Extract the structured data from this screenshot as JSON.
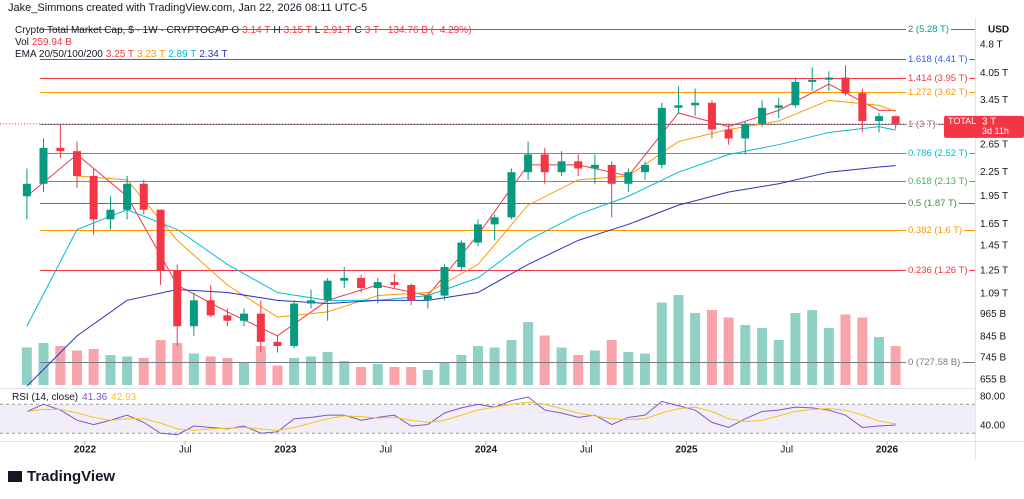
{
  "header": {
    "credit": "Jake_Simmons created with TradingView.com, Jan 22, 2026 08:11 UTC-5"
  },
  "chart_data": {
    "type": "candlestick",
    "title": "Crypto Total Market Cap, $ · 1W · CRYPTOCAP",
    "legend": {
      "ohlc": [
        {
          "label": "O",
          "value": "3.14 T"
        },
        {
          "label": "H",
          "value": "3.15 T"
        },
        {
          "label": "L",
          "value": "2.91 T"
        },
        {
          "label": "C",
          "value": "3 T"
        }
      ],
      "change": "−134.76 B (−4.29%)",
      "volume": {
        "label": "Vol",
        "value": "259.94 B"
      },
      "ema": {
        "label": "EMA 20/50/100/200",
        "values": [
          "3.25 T",
          "3.23 T",
          "2.89 T",
          "2.34 T"
        ]
      }
    },
    "log_scale": true,
    "unit": "USD",
    "up_color": "#089981",
    "down_color": "#f23645",
    "xlim": [
      2021.576,
      2026.439
    ],
    "xticks": [
      {
        "value": 2022,
        "label": "2022"
      },
      {
        "value": 2022.5,
        "label": "Jul"
      },
      {
        "value": 2023,
        "label": "2023"
      },
      {
        "value": 2023.5,
        "label": "Jul"
      },
      {
        "value": 2024,
        "label": "2024"
      },
      {
        "value": 2024.5,
        "label": "Jul"
      },
      {
        "value": 2025,
        "label": "2025"
      },
      {
        "value": 2025.5,
        "label": "Jul"
      },
      {
        "value": 2026,
        "label": "2026"
      }
    ],
    "ylim": [
      0.627,
      5.63
    ],
    "yticks": [
      {
        "value": 4.8,
        "label": "4.8 T"
      },
      {
        "value": 4.05,
        "label": "4.05 T"
      },
      {
        "value": 3.45,
        "label": "3.45 T"
      },
      {
        "value": 2.65,
        "label": "2.65 T"
      },
      {
        "value": 2.25,
        "label": "2.25 T"
      },
      {
        "value": 1.95,
        "label": "1.95 T"
      },
      {
        "value": 1.65,
        "label": "1.65 T"
      },
      {
        "value": 1.45,
        "label": "1.45 T"
      },
      {
        "value": 1.25,
        "label": "1.25 T"
      },
      {
        "value": 1.09,
        "label": "1.09 T"
      },
      {
        "value": 0.965,
        "label": "965 B"
      },
      {
        "value": 0.845,
        "label": "845 B"
      },
      {
        "value": 0.745,
        "label": "745 B"
      },
      {
        "value": 0.655,
        "label": "655 B"
      }
    ],
    "x": [
      2021.71,
      2021.793,
      2021.877,
      2021.96,
      2022.043,
      2022.127,
      2022.21,
      2022.293,
      2022.377,
      2022.46,
      2022.543,
      2022.627,
      2022.71,
      2022.793,
      2022.877,
      2022.96,
      2023.043,
      2023.127,
      2023.21,
      2023.293,
      2023.377,
      2023.46,
      2023.543,
      2023.627,
      2023.71,
      2023.793,
      2023.877,
      2023.96,
      2024.043,
      2024.127,
      2024.21,
      2024.293,
      2024.377,
      2024.46,
      2024.543,
      2024.627,
      2024.71,
      2024.793,
      2024.877,
      2024.96,
      2025.043,
      2025.127,
      2025.21,
      2025.293,
      2025.377,
      2025.46,
      2025.543,
      2025.627,
      2025.71,
      2025.793,
      2025.877,
      2025.96,
      2026.043
    ],
    "open": [
      1.95,
      2.1,
      2.6,
      2.55,
      2.2,
      1.7,
      1.8,
      2.1,
      1.8,
      1.25,
      0.9,
      1.05,
      0.96,
      0.93,
      0.97,
      0.82,
      0.8,
      1.03,
      1.05,
      1.18,
      1.2,
      1.13,
      1.17,
      1.15,
      1.05,
      1.08,
      1.28,
      1.48,
      1.65,
      1.72,
      2.25,
      2.5,
      2.25,
      2.4,
      2.3,
      2.35,
      2.1,
      2.25,
      2.35,
      3.3,
      3.35,
      3.4,
      2.9,
      2.75,
      3.0,
      3.3,
      3.35,
      3.85,
      3.9,
      3.95,
      3.6,
      3.05,
      3.14
    ],
    "high": [
      2.3,
      2.75,
      3.0,
      2.7,
      2.3,
      1.95,
      2.2,
      2.15,
      1.8,
      1.3,
      1.1,
      1.15,
      1.0,
      1.0,
      1.05,
      0.85,
      1.05,
      1.12,
      1.2,
      1.28,
      1.22,
      1.2,
      1.23,
      1.16,
      1.1,
      1.3,
      1.5,
      1.7,
      1.75,
      2.3,
      2.7,
      2.6,
      2.55,
      2.5,
      2.5,
      2.4,
      2.3,
      2.4,
      3.4,
      3.75,
      3.7,
      3.45,
      3.0,
      3.05,
      3.45,
      3.5,
      3.95,
      4.2,
      4.1,
      4.25,
      3.7,
      3.2,
      3.15
    ],
    "low": [
      1.7,
      2.0,
      2.45,
      2.05,
      1.55,
      1.6,
      1.7,
      1.75,
      1.15,
      0.8,
      0.85,
      0.95,
      0.9,
      0.9,
      0.77,
      0.77,
      0.79,
      1.0,
      0.93,
      1.13,
      1.1,
      1.03,
      1.13,
      1.02,
      1.0,
      1.05,
      1.25,
      1.45,
      1.5,
      1.7,
      2.15,
      2.1,
      2.2,
      2.2,
      2.1,
      1.72,
      2.0,
      2.15,
      2.3,
      3.2,
      3.15,
      2.75,
      2.65,
      2.5,
      2.95,
      3.1,
      3.3,
      3.65,
      3.65,
      3.55,
      2.85,
      2.85,
      2.91
    ],
    "close": [
      2.1,
      2.6,
      2.55,
      2.2,
      1.7,
      1.8,
      2.1,
      1.8,
      1.25,
      0.9,
      1.05,
      0.96,
      0.93,
      0.97,
      0.82,
      0.8,
      1.03,
      1.05,
      1.18,
      1.2,
      1.13,
      1.17,
      1.15,
      1.05,
      1.08,
      1.28,
      1.48,
      1.65,
      1.72,
      2.25,
      2.5,
      2.25,
      2.4,
      2.3,
      2.35,
      2.1,
      2.25,
      2.35,
      3.3,
      3.35,
      3.4,
      2.9,
      2.75,
      3.0,
      3.3,
      3.35,
      3.85,
      3.9,
      3.95,
      3.6,
      3.05,
      3.14,
      3
    ],
    "volume": [
      250,
      280,
      260,
      230,
      240,
      200,
      190,
      180,
      300,
      280,
      210,
      190,
      180,
      150,
      260,
      130,
      180,
      190,
      220,
      160,
      120,
      140,
      120,
      120,
      100,
      150,
      200,
      260,
      250,
      300,
      420,
      330,
      250,
      200,
      230,
      300,
      220,
      210,
      550,
      600,
      480,
      500,
      450,
      400,
      380,
      300,
      480,
      500,
      380,
      470,
      450,
      320,
      259.94
    ],
    "ema": [
      {
        "color": "#f23645",
        "x": [
          2021.71,
          2021.96,
          2022.21,
          2022.46,
          2022.71,
          2022.96,
          2023.21,
          2023.46,
          2023.71,
          2023.96,
          2024.21,
          2024.46,
          2024.71,
          2024.96,
          2025.21,
          2025.46,
          2025.71,
          2025.96,
          2026.043
        ],
        "values": [
          1.95,
          2.5,
          1.95,
          1.15,
          0.98,
          0.85,
          1.05,
          1.15,
          1.08,
          1.55,
          2.35,
          2.35,
          2.2,
          3.2,
          2.95,
          3.25,
          3.8,
          3.25,
          3.25
        ]
      },
      {
        "color": "#ff9800",
        "x": [
          2021.71,
          2021.96,
          2022.21,
          2022.46,
          2022.71,
          2022.96,
          2023.21,
          2023.46,
          2023.71,
          2023.96,
          2024.21,
          2024.46,
          2024.71,
          2024.96,
          2025.21,
          2025.46,
          2025.71,
          2025.96,
          2026.043
        ],
        "values": [
          null,
          2.2,
          2.15,
          1.5,
          1.15,
          0.95,
          0.98,
          1.08,
          1.1,
          1.3,
          1.85,
          2.15,
          2.2,
          2.7,
          2.9,
          3.05,
          3.45,
          3.35,
          3.23
        ]
      },
      {
        "color": "#00bcd4",
        "x": [
          2021.71,
          2021.96,
          2022.21,
          2022.46,
          2022.71,
          2022.96,
          2023.21,
          2023.46,
          2023.71,
          2023.96,
          2024.21,
          2024.46,
          2024.71,
          2024.96,
          2025.21,
          2025.46,
          2025.71,
          2025.96,
          2026.043
        ],
        "values": [
          0.9,
          1.6,
          1.8,
          1.6,
          1.3,
          1.1,
          1.05,
          1.05,
          1.08,
          1.2,
          1.5,
          1.75,
          1.95,
          2.25,
          2.5,
          2.65,
          2.85,
          2.95,
          2.89
        ]
      },
      {
        "color": "#2934b8",
        "x": [
          2021.71,
          2021.96,
          2022.21,
          2022.46,
          2022.71,
          2022.96,
          2023.21,
          2023.46,
          2023.71,
          2023.96,
          2024.21,
          2024.46,
          2024.71,
          2024.96,
          2025.21,
          2025.46,
          2025.71,
          2025.96,
          2026.043
        ],
        "values": [
          0.63,
          0.85,
          1.05,
          1.12,
          1.1,
          1.05,
          1.03,
          1.05,
          1.05,
          1.1,
          1.3,
          1.5,
          1.65,
          1.85,
          2.0,
          2.1,
          2.25,
          2.32,
          2.34
        ]
      }
    ],
    "fib_levels": [
      {
        "value": 5.28,
        "label": "2 (5.28 T)",
        "color": "#089981"
      },
      {
        "value": 4.41,
        "label": "1.618 (4.41 T)",
        "color": "#2962ff"
      },
      {
        "value": 3.95,
        "label": "1.414 (3.95 T)",
        "color": "#f23645"
      },
      {
        "value": 3.62,
        "label": "1.272 (3.62 T)",
        "color": "#ff9800"
      },
      {
        "value": 3,
        "label": "1 (3 T)",
        "color": "#787b86"
      },
      {
        "value": 2.52,
        "label": "0.786 (2.52 T)",
        "color": "#00bcd4"
      },
      {
        "value": 2.13,
        "label": "0.618 (2.13 T)",
        "color": "#4caf50"
      },
      {
        "value": 1.87,
        "label": "0.5 (1.87 T)",
        "color": "#388e3c"
      },
      {
        "value": 1.6,
        "label": "0.382 (1.6 T)",
        "color": "#ff9800"
      },
      {
        "value": 1.26,
        "label": "0.236 (1.26 T)",
        "color": "#f23645"
      },
      {
        "value": 0.72758,
        "label": "0 (727.58 B)",
        "color": "#787b86"
      }
    ],
    "price_badge": {
      "value": 3,
      "symbol": "TOTAL",
      "price": "3 T",
      "countdown": "3d 11h"
    },
    "rsi": {
      "label": "RSI (14, close)",
      "value_labels": [
        "41.36",
        "42.93"
      ],
      "ylim": [
        20.7,
        89.7
      ],
      "band": [
        30,
        70
      ],
      "yticks": [
        {
          "value": 80,
          "label": "80.00"
        },
        {
          "value": 40,
          "label": "40.00"
        }
      ],
      "series": [
        {
          "color": "#7e57c2",
          "values": [
            60,
            70,
            62,
            48,
            42,
            48,
            55,
            45,
            30,
            28,
            40,
            38,
            36,
            40,
            30,
            32,
            50,
            52,
            55,
            55,
            48,
            52,
            55,
            40,
            42,
            58,
            65,
            70,
            66,
            75,
            80,
            62,
            58,
            52,
            55,
            42,
            52,
            55,
            74,
            68,
            62,
            45,
            38,
            50,
            60,
            62,
            66,
            65,
            62,
            55,
            38,
            40,
            41.36
          ]
        },
        {
          "color": "#f5c518",
          "values": [
            60,
            63,
            63,
            58,
            52,
            48,
            50,
            50,
            44,
            36,
            34,
            36,
            37,
            38,
            36,
            34,
            38,
            44,
            50,
            54,
            53,
            51,
            52,
            48,
            45,
            48,
            55,
            62,
            66,
            70,
            73,
            70,
            64,
            58,
            54,
            50,
            49,
            50,
            58,
            64,
            66,
            60,
            50,
            46,
            48,
            54,
            60,
            63,
            64,
            62,
            55,
            47,
            42.93
          ]
        }
      ]
    }
  },
  "footer": {
    "brand": "TradingView"
  }
}
